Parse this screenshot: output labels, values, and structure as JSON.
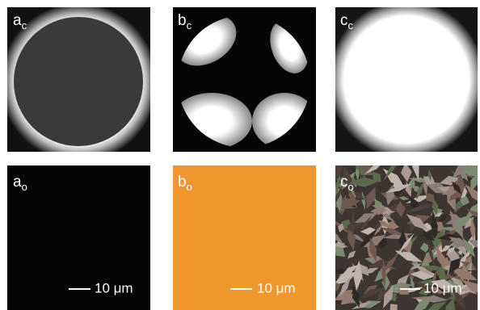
{
  "panels": [
    {
      "letter": "a",
      "subscript": "c"
    },
    {
      "letter": "b",
      "subscript": "c"
    },
    {
      "letter": "c",
      "subscript": "c"
    },
    {
      "letter": "a",
      "subscript": "o",
      "scale_bar": "10 μm"
    },
    {
      "letter": "b",
      "subscript": "o",
      "scale_bar": "10 μm"
    },
    {
      "letter": "c",
      "subscript": "o",
      "scale_bar": "10 μm"
    }
  ]
}
